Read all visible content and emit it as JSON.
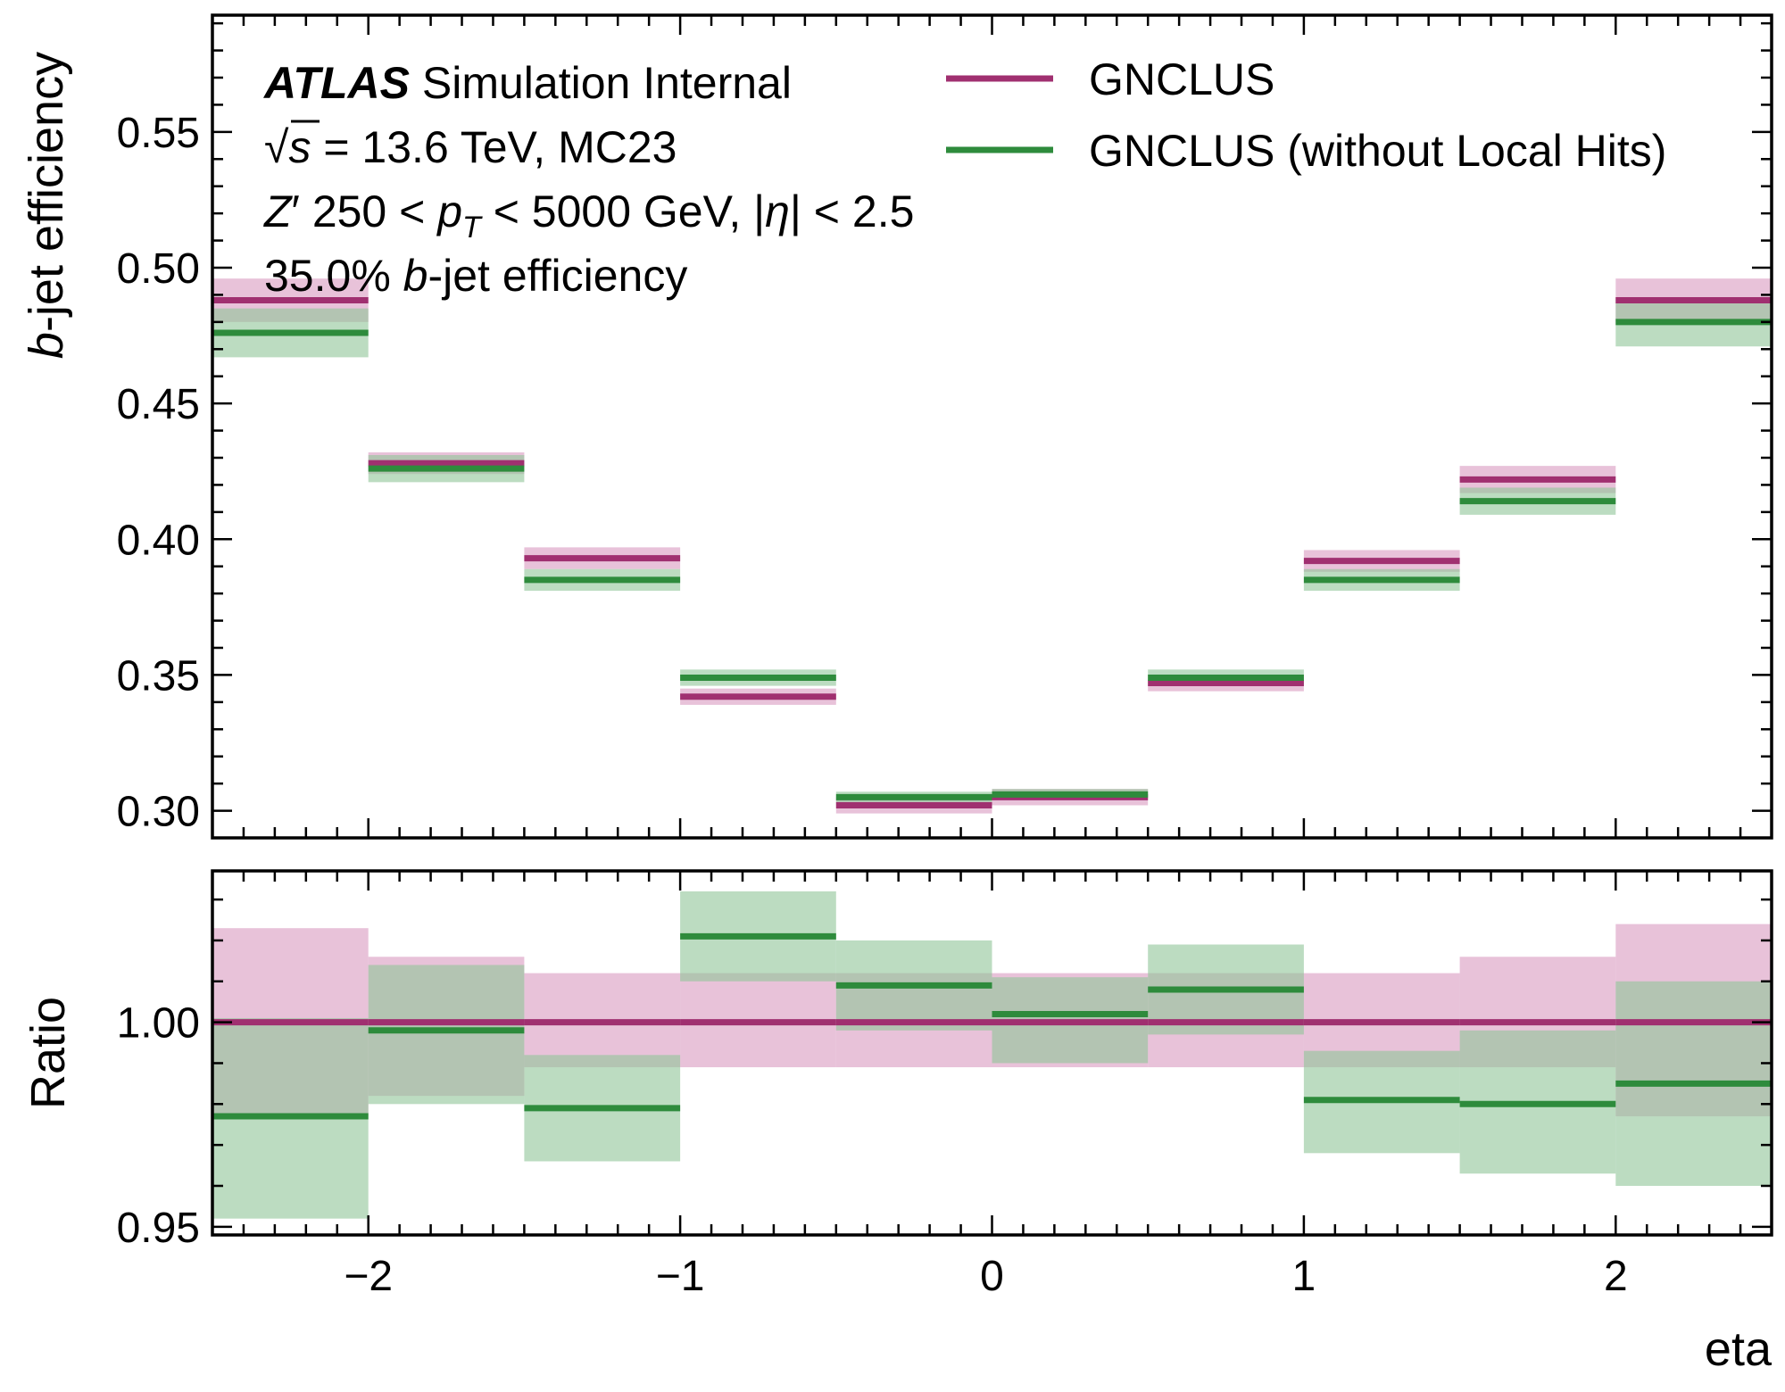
{
  "chart_data": [
    {
      "type": "step",
      "panel": "main",
      "xlabel": "",
      "ylabel_prefix": "b",
      "ylabel_rest": "-jet efficiency",
      "xlim": [
        -2.5,
        2.5
      ],
      "ylim": [
        0.29,
        0.593
      ],
      "yticks": [
        0.3,
        0.35,
        0.4,
        0.45,
        0.5,
        0.55
      ],
      "ytick_labels": [
        "0.30",
        "0.35",
        "0.40",
        "0.45",
        "0.50",
        "0.55"
      ],
      "bin_edges": [
        -2.5,
        -2.0,
        -1.5,
        -1.0,
        -0.5,
        0.0,
        0.5,
        1.0,
        1.5,
        2.0,
        2.5
      ],
      "series": [
        {
          "name": "GNCLUS",
          "color": "#a03070",
          "band_color": "#d99ac0",
          "values": [
            0.488,
            0.428,
            0.393,
            0.342,
            0.302,
            0.305,
            0.347,
            0.392,
            0.422,
            0.488
          ],
          "errors": [
            0.008,
            0.004,
            0.004,
            0.003,
            0.003,
            0.003,
            0.003,
            0.004,
            0.005,
            0.008
          ]
        },
        {
          "name": "GNCLUS (without Local Hits)",
          "color": "#2e8b3c",
          "band_color": "#8fc597",
          "values": [
            0.476,
            0.426,
            0.385,
            0.349,
            0.305,
            0.306,
            0.349,
            0.385,
            0.414,
            0.48
          ],
          "errors": [
            0.009,
            0.005,
            0.004,
            0.003,
            0.002,
            0.002,
            0.003,
            0.004,
            0.005,
            0.009
          ]
        }
      ]
    },
    {
      "type": "step",
      "panel": "ratio",
      "xlabel": "eta",
      "ylabel": "Ratio",
      "xlim": [
        -2.5,
        2.5
      ],
      "ylim": [
        0.948,
        1.037
      ],
      "yticks": [
        0.95,
        1.0
      ],
      "ytick_labels": [
        "0.95",
        "1.00"
      ],
      "xticks": [
        -2,
        -1,
        0,
        1,
        2
      ],
      "xtick_labels": [
        "−2",
        "−1",
        "0",
        "1",
        "2"
      ],
      "bin_edges": [
        -2.5,
        -2.0,
        -1.5,
        -1.0,
        -0.5,
        0.0,
        0.5,
        1.0,
        1.5,
        2.0,
        2.5
      ],
      "series": [
        {
          "name": "GNCLUS",
          "color": "#a03070",
          "band_color": "#d99ac0",
          "values": [
            1.0,
            1.0,
            1.0,
            1.0,
            1.0,
            1.0,
            1.0,
            1.0,
            1.0,
            1.0
          ],
          "band_low": [
            0.977,
            0.982,
            0.989,
            0.989,
            0.989,
            0.989,
            0.989,
            0.989,
            0.989,
            0.977
          ],
          "band_high": [
            1.023,
            1.016,
            1.012,
            1.012,
            1.012,
            1.012,
            1.012,
            1.012,
            1.016,
            1.024
          ]
        },
        {
          "name": "GNCLUS (without Local Hits)",
          "color": "#2e8b3c",
          "band_color": "#8fc597",
          "values": [
            0.977,
            0.998,
            0.979,
            1.021,
            1.009,
            1.002,
            1.008,
            0.981,
            0.98,
            0.985
          ],
          "band_low": [
            0.952,
            0.98,
            0.966,
            1.01,
            0.998,
            0.99,
            0.997,
            0.968,
            0.963,
            0.96
          ],
          "band_high": [
            1.001,
            1.014,
            0.992,
            1.032,
            1.02,
            1.011,
            1.019,
            0.993,
            0.998,
            1.01
          ]
        }
      ]
    }
  ],
  "annotations": {
    "atlas": "ATLAS",
    "atlas_rest": "Simulation Internal",
    "line2_sqrt": "√",
    "line2_s": "s",
    "line2_rest": " = 13.6 TeV, MC23",
    "line3_z": "Z",
    "line3_prime": "′",
    "line3_a": " 250 < ",
    "line3_p": "p",
    "line3_t": "T",
    "line3_b": " < 5000 GeV, |",
    "line3_eta": "η",
    "line3_c": "| < 2.5",
    "line4_a": "35.0% ",
    "line4_b": "b",
    "line4_c": "-jet efficiency"
  }
}
